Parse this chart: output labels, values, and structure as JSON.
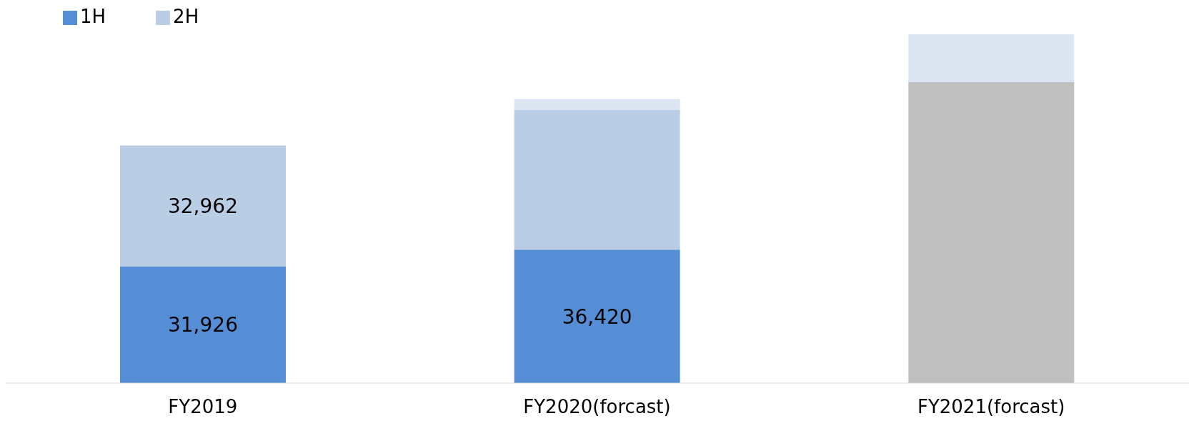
{
  "chart_data": {
    "type": "bar",
    "stacked": true,
    "categories": [
      "FY2019",
      "FY2020(forcast)",
      "FY2021(forcast)"
    ],
    "series": [
      {
        "name": "1H",
        "color": "#558ed5",
        "values": [
          31926,
          36420,
          null
        ],
        "value_labels": [
          "31,926",
          "36,420",
          null
        ]
      },
      {
        "name": "2H",
        "color": "#b9cde5",
        "values": [
          32962,
          38130,
          null
        ],
        "value_labels": [
          "32,962",
          null,
          null
        ]
      },
      {
        "color": "#bfbfbf",
        "values": [
          null,
          null,
          82140
        ]
      },
      {
        "color": "#dce6f2",
        "values": [
          null,
          3040,
          13090
        ]
      }
    ],
    "legend": "top left",
    "grid": false
  }
}
